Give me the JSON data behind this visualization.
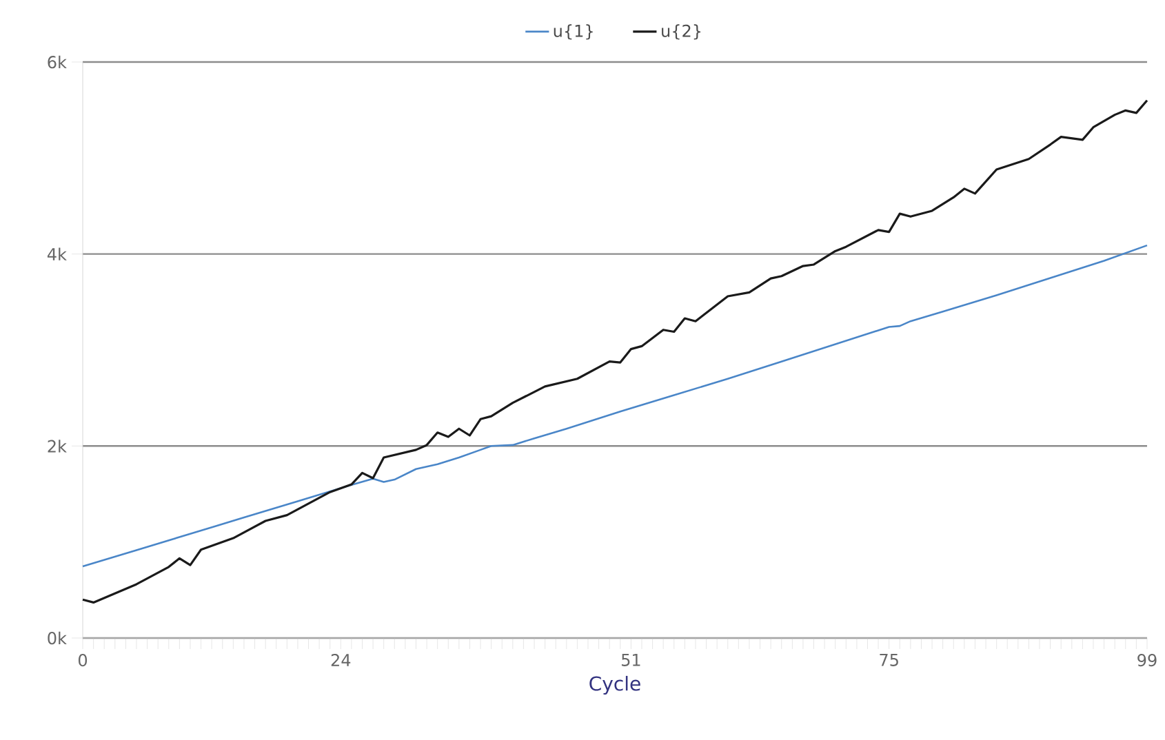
{
  "chart_data": {
    "type": "line",
    "xlabel": "Cycle",
    "legend": "top",
    "grid": "y",
    "marker": "none",
    "line_style": "solid",
    "xlim": [
      0,
      99
    ],
    "ylim": [
      0,
      6000
    ],
    "yticks": [
      {
        "value": 0,
        "label": "0k"
      },
      {
        "value": 2000,
        "label": "2k"
      },
      {
        "value": 4000,
        "label": "4k"
      },
      {
        "value": 6000,
        "label": "6k"
      }
    ],
    "xticks": [
      0,
      {
        "value": 1,
        "label": null
      },
      {
        "value": 2,
        "label": null
      },
      {
        "value": 3,
        "label": null
      },
      {
        "value": 4,
        "label": null
      },
      {
        "value": 5,
        "label": null
      },
      {
        "value": 6,
        "label": null
      },
      {
        "value": 7,
        "label": null
      },
      {
        "value": 8,
        "label": null
      },
      {
        "value": 9,
        "label": null
      },
      {
        "value": 10,
        "label": null
      },
      {
        "value": 11,
        "label": null
      },
      {
        "value": 12,
        "label": null
      },
      {
        "value": 13,
        "label": null
      },
      {
        "value": 14,
        "label": null
      },
      {
        "value": 15,
        "label": null
      },
      {
        "value": 16,
        "label": null
      },
      {
        "value": 17,
        "label": null
      },
      {
        "value": 18,
        "label": null
      },
      {
        "value": 19,
        "label": null
      },
      {
        "value": 20,
        "label": null
      },
      {
        "value": 21,
        "label": null
      },
      {
        "value": 22,
        "label": null
      },
      {
        "value": 23,
        "label": null
      },
      24,
      {
        "value": 25,
        "label": null
      },
      {
        "value": 26,
        "label": null
      },
      {
        "value": 27,
        "label": null
      },
      {
        "value": 28,
        "label": null
      },
      {
        "value": 29,
        "label": null
      },
      {
        "value": 30,
        "label": null
      },
      {
        "value": 31,
        "label": null
      },
      {
        "value": 32,
        "label": null
      },
      {
        "value": 33,
        "label": null
      },
      {
        "value": 34,
        "label": null
      },
      {
        "value": 35,
        "label": null
      },
      {
        "value": 36,
        "label": null
      },
      {
        "value": 37,
        "label": null
      },
      {
        "value": 38,
        "label": null
      },
      {
        "value": 39,
        "label": null
      },
      {
        "value": 40,
        "label": null
      },
      {
        "value": 41,
        "label": null
      },
      {
        "value": 42,
        "label": null
      },
      {
        "value": 43,
        "label": null
      },
      {
        "value": 44,
        "label": null
      },
      {
        "value": 45,
        "label": null
      },
      {
        "value": 46,
        "label": null
      },
      {
        "value": 47,
        "label": null
      },
      {
        "value": 48,
        "label": null
      },
      {
        "value": 49,
        "label": null
      },
      {
        "value": 50,
        "label": null
      },
      51,
      {
        "value": 52,
        "label": null
      },
      {
        "value": 53,
        "label": null
      },
      {
        "value": 54,
        "label": null
      },
      {
        "value": 55,
        "label": null
      },
      {
        "value": 56,
        "label": null
      },
      {
        "value": 57,
        "label": null
      },
      {
        "value": 58,
        "label": null
      },
      {
        "value": 59,
        "label": null
      },
      {
        "value": 60,
        "label": null
      },
      {
        "value": 61,
        "label": null
      },
      {
        "value": 62,
        "label": null
      },
      {
        "value": 63,
        "label": null
      },
      {
        "value": 64,
        "label": null
      },
      {
        "value": 65,
        "label": null
      },
      {
        "value": 66,
        "label": null
      },
      {
        "value": 67,
        "label": null
      },
      {
        "value": 68,
        "label": null
      },
      {
        "value": 69,
        "label": null
      },
      {
        "value": 70,
        "label": null
      },
      {
        "value": 71,
        "label": null
      },
      {
        "value": 72,
        "label": null
      },
      {
        "value": 73,
        "label": null
      },
      {
        "value": 74,
        "label": null
      },
      75,
      {
        "value": 76,
        "label": null
      },
      {
        "value": 77,
        "label": null
      },
      {
        "value": 78,
        "label": null
      },
      {
        "value": 79,
        "label": null
      },
      {
        "value": 80,
        "label": null
      },
      {
        "value": 81,
        "label": null
      },
      {
        "value": 82,
        "label": null
      },
      {
        "value": 83,
        "label": null
      },
      {
        "value": 84,
        "label": null
      },
      {
        "value": 85,
        "label": null
      },
      {
        "value": 86,
        "label": null
      },
      {
        "value": 87,
        "label": null
      },
      {
        "value": 88,
        "label": null
      },
      {
        "value": 89,
        "label": null
      },
      {
        "value": 90,
        "label": null
      },
      {
        "value": 91,
        "label": null
      },
      {
        "value": 92,
        "label": null
      },
      {
        "value": 93,
        "label": null
      },
      {
        "value": 94,
        "label": null
      },
      {
        "value": 95,
        "label": null
      },
      {
        "value": 96,
        "label": null
      },
      {
        "value": 97,
        "label": null
      },
      {
        "value": 98,
        "label": null
      },
      99
    ],
    "series": [
      {
        "name": "u{1}",
        "color": "#4a86c8",
        "x": [
          0,
          5,
          10,
          15,
          20,
          25,
          27,
          28,
          29,
          31,
          33,
          35,
          37,
          38,
          40,
          42,
          45,
          50,
          55,
          60,
          65,
          70,
          75,
          76,
          77,
          80,
          85,
          90,
          95,
          99
        ],
        "values": [
          746,
          915,
          1085,
          1255,
          1425,
          1595,
          1660,
          1625,
          1650,
          1760,
          1810,
          1880,
          1960,
          2000,
          2010,
          2080,
          2180,
          2360,
          2530,
          2700,
          2880,
          3060,
          3240,
          3250,
          3300,
          3400,
          3570,
          3750,
          3930,
          4090
        ]
      },
      {
        "name": "u{2}",
        "color": "#1a1a1a",
        "x": [
          0,
          1,
          5,
          8,
          9,
          10,
          11,
          14,
          17,
          19,
          23,
          25,
          26,
          27,
          28,
          31,
          32,
          33,
          34,
          35,
          36,
          37,
          38,
          40,
          43,
          46,
          49,
          50,
          51,
          52,
          54,
          55,
          56,
          57,
          60,
          62,
          64,
          65,
          67,
          68,
          70,
          71,
          74,
          75,
          76,
          77,
          79,
          81,
          82,
          83,
          85,
          88,
          90,
          91,
          93,
          94,
          96,
          97,
          98,
          99
        ],
        "values": [
          400,
          370,
          560,
          740,
          830,
          760,
          920,
          1040,
          1220,
          1280,
          1520,
          1600,
          1720,
          1665,
          1880,
          1960,
          2010,
          2140,
          2095,
          2180,
          2110,
          2280,
          2310,
          2450,
          2620,
          2700,
          2880,
          2870,
          3010,
          3040,
          3210,
          3190,
          3330,
          3300,
          3560,
          3600,
          3745,
          3770,
          3875,
          3890,
          4030,
          4075,
          4250,
          4230,
          4420,
          4390,
          4450,
          4590,
          4680,
          4630,
          4880,
          4990,
          5140,
          5220,
          5190,
          5320,
          5450,
          5495,
          5470,
          5600
        ]
      }
    ]
  }
}
